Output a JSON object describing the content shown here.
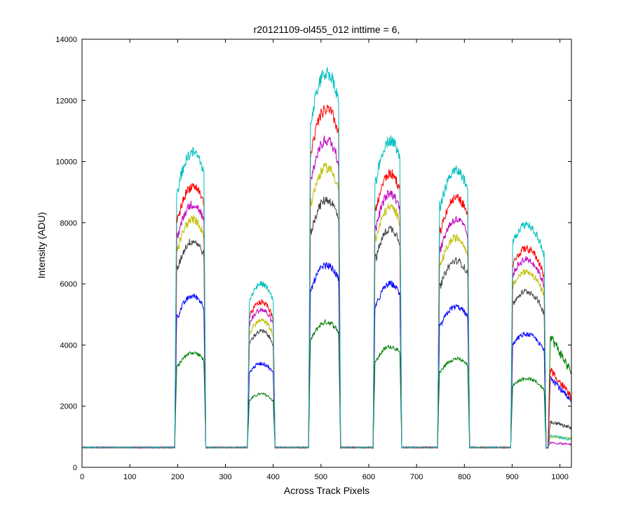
{
  "chart_data": {
    "type": "line",
    "title": "r20121109-ol455_012 inttime = 6,",
    "xlabel": "Across Track Pixels",
    "ylabel": "Intensity (ADU)",
    "xlim": [
      0,
      1024
    ],
    "ylim": [
      0,
      14000
    ],
    "x_ticks": [
      "0",
      "100",
      "200",
      "300",
      "400",
      "500",
      "600",
      "700",
      "800",
      "900",
      "1000"
    ],
    "y_ticks": [
      "0",
      "2000",
      "4000",
      "6000",
      "8000",
      "10000",
      "12000",
      "14000"
    ],
    "grid": false,
    "legend": "none",
    "baseline": 650,
    "plateaus": [
      {
        "x_start": 195,
        "x_end": 258,
        "x_peak": 232
      },
      {
        "x_start": 347,
        "x_end": 403,
        "x_peak": 375
      },
      {
        "x_start": 475,
        "x_end": 540,
        "x_peak": 512
      },
      {
        "x_start": 610,
        "x_end": 668,
        "x_peak": 645
      },
      {
        "x_start": 745,
        "x_end": 810,
        "x_peak": 783
      },
      {
        "x_start": 898,
        "x_end": 970,
        "x_peak": 930
      }
    ],
    "series": [
      {
        "color": "#00bfbf",
        "peaks": [
          10300,
          6000,
          12900,
          10700,
          9700,
          7950
        ],
        "tail": [
          1050,
          900
        ]
      },
      {
        "color": "#ff0000",
        "peaks": [
          9200,
          5400,
          11700,
          9600,
          8800,
          7150
        ],
        "tail": [
          3200,
          2300
        ]
      },
      {
        "color": "#bf00bf",
        "peaks": [
          8600,
          5150,
          10700,
          8950,
          8100,
          6800
        ],
        "tail": [
          800,
          750
        ]
      },
      {
        "color": "#bfbf00",
        "peaks": [
          8100,
          4800,
          9800,
          8500,
          7500,
          6400
        ],
        "tail": [
          1000,
          950
        ]
      },
      {
        "color": "#404040",
        "peaks": [
          7400,
          4450,
          8750,
          7800,
          6750,
          5750
        ],
        "tail": [
          1500,
          1300
        ]
      },
      {
        "color": "#0000ff",
        "peaks": [
          5600,
          3400,
          6600,
          6000,
          5250,
          4350
        ],
        "tail": [
          3000,
          2100
        ]
      },
      {
        "color": "#007f00",
        "peaks": [
          3750,
          2400,
          4750,
          3950,
          3550,
          2900
        ],
        "tail": [
          4300,
          3100
        ]
      }
    ]
  }
}
